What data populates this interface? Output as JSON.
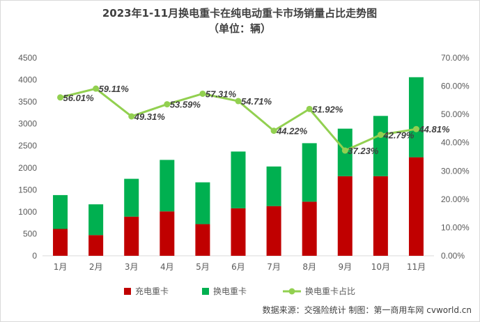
{
  "chart_data": {
    "type": "bar",
    "title": "2023年1-11月换电重卡在纯电动重卡市场销量占比走势图",
    "subtitle": "（单位：辆）",
    "categories": [
      "1月",
      "2月",
      "3月",
      "4月",
      "5月",
      "6月",
      "7月",
      "8月",
      "9月",
      "10月",
      "11月"
    ],
    "stacked": true,
    "series": [
      {
        "name": "充电重卡",
        "type": "bar",
        "axis": "left",
        "color": "#c00000",
        "values": [
          610,
          470,
          890,
          1010,
          720,
          1080,
          1130,
          1230,
          1810,
          1810,
          2240
        ]
      },
      {
        "name": "换电重卡",
        "type": "bar",
        "axis": "left",
        "color": "#00b050",
        "values": [
          770,
          700,
          860,
          1170,
          950,
          1290,
          900,
          1330,
          1080,
          1370,
          1820
        ]
      },
      {
        "name": "换电重卡占比",
        "type": "line",
        "axis": "right",
        "color": "#92d050",
        "values": [
          56.01,
          59.11,
          49.31,
          53.59,
          57.31,
          54.71,
          44.22,
          51.92,
          37.23,
          42.79,
          44.81
        ],
        "labels": [
          "56.01%",
          "59.11%",
          "49.31%",
          "53.59%",
          "57.31%",
          "54.71%",
          "44.22%",
          "51.92%",
          "37.23%",
          "42.79%",
          "44.81%"
        ]
      }
    ],
    "y_left": {
      "min": 0,
      "max": 4500,
      "step": 500,
      "ticks": [
        "0",
        "500",
        "1000",
        "1500",
        "2000",
        "2500",
        "3000",
        "3500",
        "4000",
        "4500"
      ]
    },
    "y_right": {
      "min": 0,
      "max": 70,
      "step": 10,
      "ticks": [
        "0.00%",
        "10.00%",
        "20.00%",
        "30.00%",
        "40.00%",
        "50.00%",
        "60.00%",
        "70.00%"
      ]
    },
    "grid": false,
    "legend": {
      "position": "bottom",
      "items": [
        {
          "label": "充电重卡",
          "kind": "bar",
          "color": "#c00000"
        },
        {
          "label": "换电重卡",
          "kind": "bar",
          "color": "#00b050"
        },
        {
          "label": "换电重卡占比",
          "kind": "line",
          "color": "#92d050"
        }
      ]
    }
  },
  "source": "数据来源：交强险统计  制图：第一商用车网 cvworld.cn"
}
